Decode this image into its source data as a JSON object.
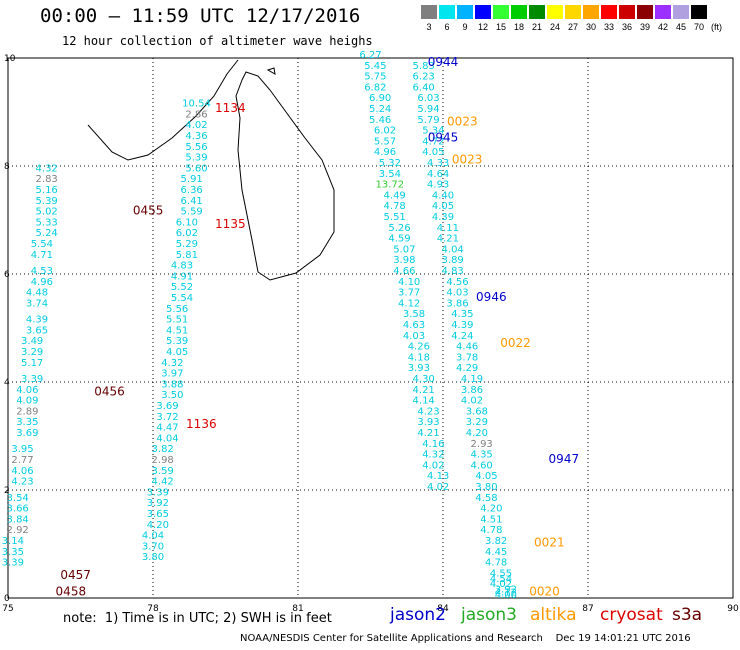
{
  "header": {
    "title": "00:00 – 11:59 UTC 12/17/2016",
    "subtitle": "12 hour collection of altimeter wave heighs"
  },
  "color_scale": {
    "unit": "(ft)",
    "bins": [
      {
        "label": "3",
        "color": "#7f7f7f"
      },
      {
        "label": "6",
        "color": "#00e5ee"
      },
      {
        "label": "9",
        "color": "#00b2ff"
      },
      {
        "label": "12",
        "color": "#0000ff"
      },
      {
        "label": "15",
        "color": "#33ff33"
      },
      {
        "label": "18",
        "color": "#00cd00"
      },
      {
        "label": "21",
        "color": "#008b00"
      },
      {
        "label": "24",
        "color": "#ffff00"
      },
      {
        "label": "27",
        "color": "#ffd700"
      },
      {
        "label": "30",
        "color": "#ffa500"
      },
      {
        "label": "33",
        "color": "#ff0000"
      },
      {
        "label": "36",
        "color": "#cd0000"
      },
      {
        "label": "39",
        "color": "#8b0000"
      },
      {
        "label": "42",
        "color": "#9b30ff"
      },
      {
        "label": "45",
        "color": "#b0a0e0"
      },
      {
        "label": "70",
        "color": "#000000"
      }
    ]
  },
  "axes": {
    "x_ticks": [
      "75",
      "78",
      "81",
      "84",
      "87",
      "90"
    ],
    "y_ticks": [
      "0",
      "2",
      "4",
      "6",
      "8",
      "10"
    ]
  },
  "colors": {
    "low": "#00cde0",
    "mid": "#7f7f7f",
    "high": "#33cc33",
    "jason2": "#0000cc",
    "jason3": "#22aa22",
    "altika": "#ff9900",
    "cryosat": "#dd0000",
    "s3a": "#660000"
  },
  "tracks": [
    {
      "name": "track-a",
      "x": [
        75.8,
        75.8,
        75.8,
        75.8,
        75.8,
        75.8,
        75.8,
        75.7,
        75.7,
        75.7,
        75.7,
        75.6,
        75.6,
        75.6,
        75.6,
        75.5,
        75.5,
        75.5,
        75.5,
        75.4,
        75.4,
        75.4,
        75.4,
        75.4,
        75.3,
        75.3,
        75.3,
        75.3,
        75.2,
        75.2,
        75.2,
        75.2,
        75.1,
        75.1,
        75.1
      ],
      "y": [
        7.9,
        7.7,
        7.5,
        7.3,
        7.1,
        6.9,
        6.7,
        6.5,
        6.3,
        6.0,
        5.8,
        5.6,
        5.4,
        5.1,
        4.9,
        4.7,
        4.5,
        4.3,
        4.0,
        3.8,
        3.6,
        3.4,
        3.2,
        3.0,
        2.7,
        2.5,
        2.3,
        2.1,
        1.8,
        1.6,
        1.4,
        1.2,
        1.0,
        0.8,
        0.6
      ],
      "v": [
        "4.32",
        "2.83",
        "5.16",
        "5.39",
        "5.02",
        "5.33",
        "5.24",
        "5.54",
        "4.71",
        "4.53",
        "4.96",
        "4.48",
        "3.74",
        "4.39",
        "3.65",
        "3.49",
        "3.29",
        "5.17",
        "3.39",
        "4.06",
        "4.09",
        "2.89",
        "3.35",
        "3.69",
        "3.95",
        "2.77",
        "4.06",
        "4.23",
        "3.54",
        "3.66",
        "3.84",
        "2.92",
        "3.14",
        "3.35",
        "3.39"
      ]
    },
    {
      "name": "track-b",
      "x": [
        78.9,
        78.9,
        78.9,
        78.9,
        78.9,
        78.9,
        78.9,
        78.8,
        78.8,
        78.8,
        78.8,
        78.7,
        78.7,
        78.7,
        78.7,
        78.6,
        78.6,
        78.6,
        78.6,
        78.5,
        78.5,
        78.5,
        78.5,
        78.5,
        78.4,
        78.4,
        78.4,
        78.4,
        78.3,
        78.3,
        78.3,
        78.3,
        78.2,
        78.2,
        78.2,
        78.2,
        78.1,
        78.1,
        78.1,
        78.1,
        78.0,
        78.0,
        78.0
      ],
      "y": [
        9.1,
        8.9,
        8.7,
        8.5,
        8.3,
        8.1,
        7.9,
        7.7,
        7.5,
        7.3,
        7.1,
        6.9,
        6.7,
        6.5,
        6.3,
        6.1,
        5.9,
        5.7,
        5.5,
        5.3,
        5.1,
        4.9,
        4.7,
        4.5,
        4.3,
        4.1,
        3.9,
        3.7,
        3.5,
        3.3,
        3.1,
        2.9,
        2.7,
        2.5,
        2.3,
        2.1,
        1.9,
        1.7,
        1.5,
        1.3,
        1.1,
        0.9,
        0.7
      ],
      "v": [
        "10.54",
        "2.86",
        "4.02",
        "4.36",
        "5.56",
        "5.39",
        "5.60",
        "5.91",
        "6.36",
        "6.41",
        "5.59",
        "6.10",
        "6.02",
        "5.29",
        "5.81",
        "4.83",
        "4.91",
        "5.52",
        "5.54",
        "5.56",
        "5.51",
        "4.51",
        "5.39",
        "4.05",
        "4.32",
        "3.97",
        "3.88",
        "3.50",
        "3.69",
        "3.72",
        "4.47",
        "4.04",
        "3.82",
        "2.98",
        "3.59",
        "4.42",
        "3.39",
        "3.92",
        "3.65",
        "4.20",
        "4.04",
        "3.70",
        "3.80"
      ]
    },
    {
      "name": "track-c",
      "x": [
        82.5,
        82.6,
        82.6,
        82.6,
        82.7,
        82.7,
        82.7,
        82.8,
        82.8,
        82.8,
        82.9,
        82.9,
        82.9,
        83.0,
        83.0,
        83.0,
        83.1,
        83.1,
        83.2,
        83.2,
        83.2,
        83.3,
        83.3,
        83.3,
        83.4,
        83.4,
        83.4,
        83.5,
        83.5,
        83.5,
        83.6,
        83.6,
        83.6,
        83.7,
        83.7,
        83.7,
        83.8,
        83.8,
        83.8,
        83.9,
        83.9
      ],
      "y": [
        10.0,
        9.8,
        9.6,
        9.4,
        9.2,
        9.0,
        8.8,
        8.6,
        8.4,
        8.2,
        8.0,
        7.8,
        7.6,
        7.4,
        7.2,
        7.0,
        6.8,
        6.6,
        6.4,
        6.2,
        6.0,
        5.8,
        5.6,
        5.4,
        5.2,
        5.0,
        4.8,
        4.6,
        4.4,
        4.2,
        4.0,
        3.8,
        3.6,
        3.4,
        3.2,
        3.0,
        2.8,
        2.6,
        2.4,
        2.2,
        2.0
      ],
      "v": [
        "6.27",
        "5.45",
        "5.75",
        "6.82",
        "6.90",
        "5.24",
        "5.46",
        "6.02",
        "5.57",
        "4.96",
        "5.32",
        "3.54",
        "13.72",
        "4.49",
        "4.78",
        "5.51",
        "5.26",
        "4.59",
        "5.07",
        "3.98",
        "4.66",
        "4.10",
        "3.77",
        "4.12",
        "3.58",
        "4.63",
        "4.03",
        "4.26",
        "4.18",
        "3.93",
        "4.30",
        "4.21",
        "4.14",
        "4.23",
        "3.93",
        "4.21",
        "4.16",
        "4.32",
        "4.02",
        "4.13",
        "4.02"
      ]
    },
    {
      "name": "track-d",
      "x": [
        83.6,
        83.6,
        83.6,
        83.7,
        83.7,
        83.7,
        83.8,
        83.8,
        83.8,
        83.9,
        83.9,
        83.9,
        84.0,
        84.0,
        84.0,
        84.1,
        84.1,
        84.2,
        84.2,
        84.2,
        84.3,
        84.3,
        84.3,
        84.4,
        84.4,
        84.4,
        84.5,
        84.5,
        84.5,
        84.6,
        84.6,
        84.6,
        84.7,
        84.7,
        84.7,
        84.8,
        84.8,
        84.8,
        84.9,
        84.9,
        84.9,
        85.0,
        85.0,
        85.0,
        85.1,
        85.1,
        85.1,
        85.2,
        85.2,
        85.2,
        85.3,
        85.3,
        85.3
      ],
      "y": [
        9.8,
        9.6,
        9.4,
        9.2,
        9.0,
        8.8,
        8.6,
        8.4,
        8.2,
        8.0,
        7.8,
        7.6,
        7.4,
        7.2,
        7.0,
        6.8,
        6.6,
        6.4,
        6.2,
        6.0,
        5.8,
        5.6,
        5.4,
        5.2,
        5.0,
        4.8,
        4.6,
        4.4,
        4.2,
        4.0,
        3.8,
        3.6,
        3.4,
        3.2,
        3.0,
        2.8,
        2.6,
        2.4,
        2.2,
        2.0,
        1.8,
        1.6,
        1.4,
        1.2,
        1.0,
        0.8,
        0.6,
        0.4,
        0.3,
        0.2,
        0.1,
        0.05,
        0.0
      ],
      "v": [
        "5.83",
        "6.23",
        "6.40",
        "6.03",
        "5.94",
        "5.79",
        "5.34",
        "4.72",
        "4.05",
        "4.33",
        "4.64",
        "4.93",
        "4.40",
        "4.05",
        "4.39",
        "4.11",
        "4.21",
        "4.04",
        "3.89",
        "4.83",
        "4.56",
        "4.03",
        "3.86",
        "4.35",
        "4.39",
        "4.24",
        "4.46",
        "3.78",
        "4.29",
        "4.19",
        "3.86",
        "4.02",
        "3.68",
        "3.29",
        "4.20",
        "2.93",
        "4.35",
        "4.60",
        "4.05",
        "3.80",
        "4.58",
        "4.20",
        "4.51",
        "4.78",
        "3.82",
        "4.45",
        "4.78",
        "4.55",
        "4.54",
        "4.02",
        "3.92",
        "4.12",
        "4.00"
      ]
    }
  ],
  "time_labels": [
    {
      "text": "0944",
      "sat": "jason2",
      "x": 84.0,
      "y": 9.85
    },
    {
      "text": "0945",
      "sat": "jason2",
      "x": 84.0,
      "y": 8.45
    },
    {
      "text": "0946",
      "sat": "jason2",
      "x": 85.0,
      "y": 5.5
    },
    {
      "text": "0947",
      "sat": "jason2",
      "x": 86.5,
      "y": 2.5
    },
    {
      "text": "0023",
      "sat": "altika",
      "x": 84.4,
      "y": 8.75
    },
    {
      "text": "0023",
      "sat": "altika",
      "x": 84.5,
      "y": 8.05
    },
    {
      "text": "0022",
      "sat": "altika",
      "x": 85.5,
      "y": 4.65
    },
    {
      "text": "0021",
      "sat": "altika",
      "x": 86.2,
      "y": 0.95
    },
    {
      "text": "0020",
      "sat": "altika",
      "x": 86.1,
      "y": 0.05
    },
    {
      "text": "1134",
      "sat": "cryosat",
      "x": 79.6,
      "y": 9.0
    },
    {
      "text": "1135",
      "sat": "cryosat",
      "x": 79.6,
      "y": 6.85
    },
    {
      "text": "1136",
      "sat": "cryosat",
      "x": 79.0,
      "y": 3.15
    },
    {
      "text": "0455",
      "sat": "s3a",
      "x": 77.9,
      "y": 7.1
    },
    {
      "text": "0456",
      "sat": "s3a",
      "x": 77.1,
      "y": 3.75
    },
    {
      "text": "0457",
      "sat": "s3a",
      "x": 76.4,
      "y": 0.35
    },
    {
      "text": "0458",
      "sat": "s3a",
      "x": 76.3,
      "y": 0.05
    }
  ],
  "note": "note:  1) Time is in UTC; 2) SWH is in feet",
  "legend": [
    {
      "label": "jason2",
      "key": "jason2"
    },
    {
      "label": "jason3",
      "key": "jason3"
    },
    {
      "label": "altika",
      "key": "altika"
    },
    {
      "label": "cryosat",
      "key": "cryosat"
    },
    {
      "label": "s3a",
      "key": "s3a"
    }
  ],
  "footer": {
    "credit": "NOAA/NESDIS Center for Satellite Applications and Research",
    "timestamp": "Dec 19 14:01:21 UTC 2016"
  }
}
